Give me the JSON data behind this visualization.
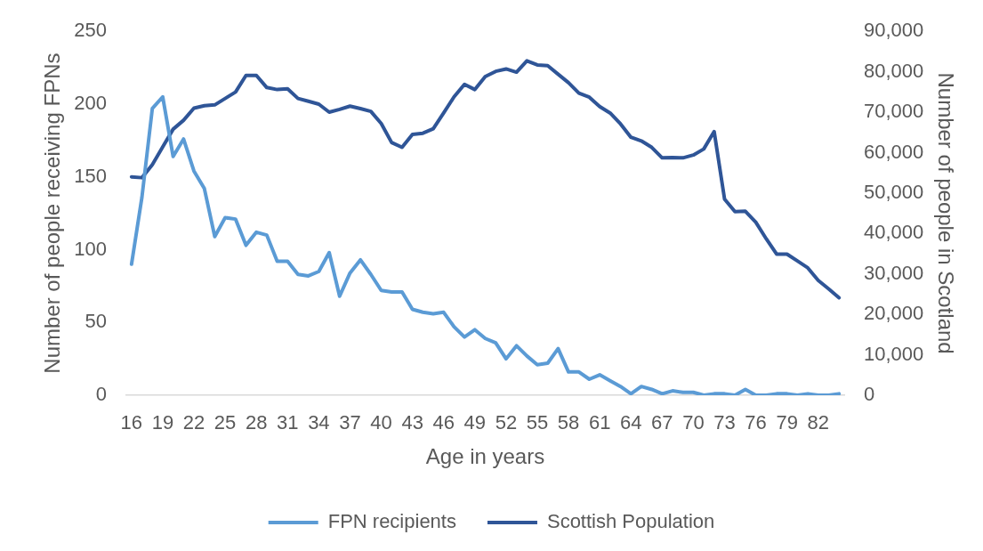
{
  "chart_data": {
    "type": "line",
    "xlabel": "Age in years",
    "ylabel": "Number of people receiving FPNs",
    "y2label": "Number of people in Scotland",
    "categories": [
      "16",
      null,
      null,
      "19",
      null,
      null,
      "22",
      null,
      null,
      "25",
      null,
      null,
      "28",
      null,
      null,
      "31",
      null,
      null,
      "34",
      null,
      null,
      "37",
      null,
      null,
      "40",
      null,
      null,
      "43",
      null,
      null,
      "46",
      null,
      null,
      "49",
      null,
      null,
      "52",
      null,
      null,
      "55",
      null,
      null,
      "58",
      null,
      null,
      "61",
      null,
      null,
      "64",
      null,
      null,
      "67",
      null,
      null,
      "70",
      null,
      null,
      "73",
      null,
      null,
      "76",
      null,
      null,
      "79",
      null,
      null,
      "82",
      null,
      null
    ],
    "series": [
      {
        "name": "FPN recipients",
        "color": "#5b9bd5",
        "values": [
          90,
          136,
          197,
          205,
          164,
          176,
          154,
          142,
          109,
          122,
          121,
          103,
          112,
          110,
          92,
          92,
          83,
          82,
          85,
          98,
          68,
          84,
          93,
          83,
          72,
          71,
          71,
          59,
          57,
          56,
          57,
          47,
          40,
          45,
          39,
          36,
          25,
          34,
          27,
          21,
          22,
          32,
          16,
          16,
          11,
          14,
          10,
          6,
          1,
          6,
          4,
          1,
          3,
          2,
          2,
          0,
          1,
          1,
          0,
          4,
          0,
          0,
          1,
          1,
          0,
          1,
          0,
          0,
          1
        ]
      },
      {
        "name": "Scottish Population",
        "color": "#2f5597",
        "axis": "y2",
        "values": [
          54000,
          53800,
          57000,
          61400,
          65800,
          68000,
          71000,
          71600,
          71800,
          73400,
          75000,
          79100,
          79100,
          76100,
          75600,
          75800,
          73400,
          72700,
          72000,
          70000,
          70700,
          71500,
          70900,
          70200,
          67200,
          62500,
          61300,
          64500,
          64800,
          65900,
          69800,
          73800,
          76900,
          75600,
          78800,
          80100,
          80700,
          79900,
          82700,
          81700,
          81500,
          79400,
          77300,
          74700,
          73700,
          71400,
          69800,
          67100,
          63800,
          62900,
          61300,
          58700,
          58800,
          58700,
          59400,
          60900,
          65200,
          48500,
          45400,
          45500,
          42800,
          38700,
          34900,
          34900,
          33200,
          31500,
          28400,
          26300,
          24100
        ]
      }
    ],
    "ylim": [
      0,
      250
    ],
    "yticks": [
      0,
      50,
      100,
      150,
      200,
      250
    ],
    "y2lim": [
      0,
      90000
    ],
    "y2ticks": [
      0,
      {
        "value": 10000,
        "label": "10,000"
      },
      {
        "value": 20000,
        "label": "20,000"
      },
      {
        "value": 30000,
        "label": "30,000"
      },
      {
        "value": 40000,
        "label": "40,000"
      },
      {
        "value": 50000,
        "label": "50,000"
      },
      {
        "value": 60000,
        "label": "60,000"
      },
      {
        "value": 70000,
        "label": "70,000"
      },
      {
        "value": 80000,
        "label": "80,000"
      },
      {
        "value": 90000,
        "label": "90,000"
      }
    ],
    "legend": "bottom",
    "grid": false
  }
}
